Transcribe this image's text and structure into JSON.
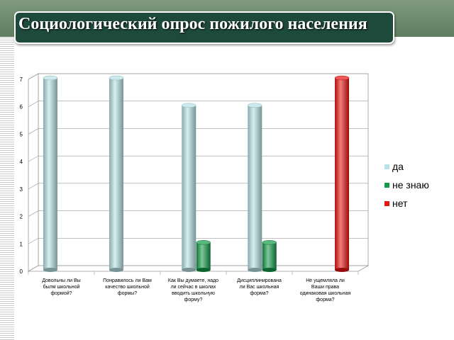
{
  "page": {
    "title": "Социологический опрос пожилого населения"
  },
  "chart_data": {
    "type": "bar",
    "title": "",
    "xlabel": "",
    "ylabel": "",
    "ylim": [
      0,
      7
    ],
    "yticks": [
      0,
      1,
      2,
      3,
      4,
      5,
      6,
      7
    ],
    "grid": true,
    "legend_position": "right",
    "categories": [
      [
        "Довольны ли Вы",
        "былм школьной",
        "формой?"
      ],
      [
        "Понравилось ли Вам",
        "качество школьной",
        "формы?"
      ],
      [
        "Как Вы думаете, надо",
        "ли сейчас в школах",
        "вводить школьную",
        "форму?"
      ],
      [
        "Дисциплинирована",
        "ли Вас школьная",
        "форма?"
      ],
      [
        "Не ущемляла ли",
        "Ваши права",
        "одинаковая школьная",
        "форма?"
      ]
    ],
    "series": [
      {
        "name": "да",
        "color": "#b7e2e6",
        "values": [
          7,
          7,
          6,
          6,
          null
        ]
      },
      {
        "name": "не знаю",
        "color": "#139a48",
        "values": [
          null,
          null,
          1,
          1,
          null
        ]
      },
      {
        "name": "нет",
        "color": "#e8120f",
        "values": [
          null,
          null,
          null,
          null,
          7
        ]
      }
    ]
  }
}
